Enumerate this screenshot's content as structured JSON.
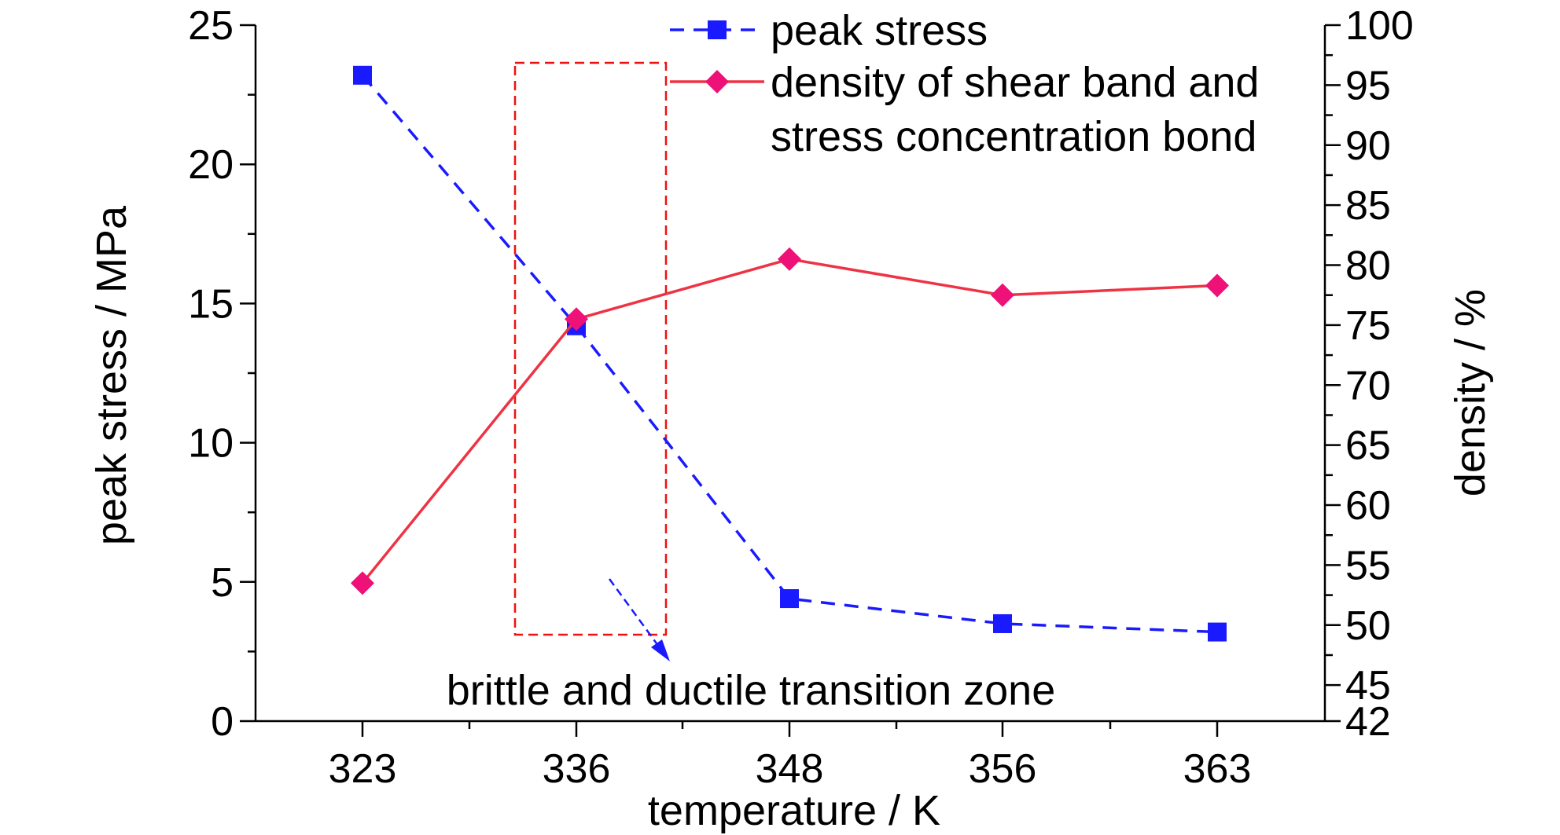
{
  "chart_data": {
    "type": "line",
    "categories": [
      "323",
      "336",
      "348",
      "356",
      "363"
    ],
    "xlabel": "temperature / K",
    "ylabel_left": "peak stress / MPa",
    "ylabel_right": "density / %",
    "ylim_left": [
      0,
      25
    ],
    "yticks_left": [
      "0",
      "5",
      "10",
      "15",
      "20",
      "25"
    ],
    "ylim_right": [
      42,
      100
    ],
    "yticks_right": [
      {
        "value": 42,
        "label": "42"
      },
      {
        "value": 45,
        "label": "45"
      },
      {
        "value": 50,
        "label": "50"
      },
      {
        "value": 55,
        "label": "55"
      },
      {
        "value": 60,
        "label": "60"
      },
      {
        "value": 65,
        "label": "65"
      },
      {
        "value": 70,
        "label": "70"
      },
      {
        "value": 75,
        "label": "75"
      },
      {
        "value": 80,
        "label": "80"
      },
      {
        "value": 85,
        "label": "85"
      },
      {
        "value": 90,
        "label": "90"
      },
      {
        "value": 95,
        "label": "95"
      },
      {
        "value": 100,
        "label": "100"
      }
    ],
    "series": [
      {
        "name": "peak stress",
        "axis": "left",
        "values": [
          23.2,
          14.2,
          4.4,
          3.5,
          3.2
        ],
        "color": "#1a1aff",
        "line_style": "dashed",
        "marker": "square"
      },
      {
        "name_lines": [
          "density of shear band and",
          "stress concentration bond"
        ],
        "axis": "right",
        "values": [
          53.5,
          75.5,
          80.5,
          77.5,
          78.3
        ],
        "color": "#ee3344",
        "marker_color": "#ee1177",
        "line_style": "solid",
        "marker": "diamond"
      }
    ],
    "annotation": {
      "text": "brittle and ductile transition zone",
      "box_color": "#ee1111",
      "arrow_color": "#1a1aff"
    },
    "legend_position": "top-right",
    "grid": false
  }
}
